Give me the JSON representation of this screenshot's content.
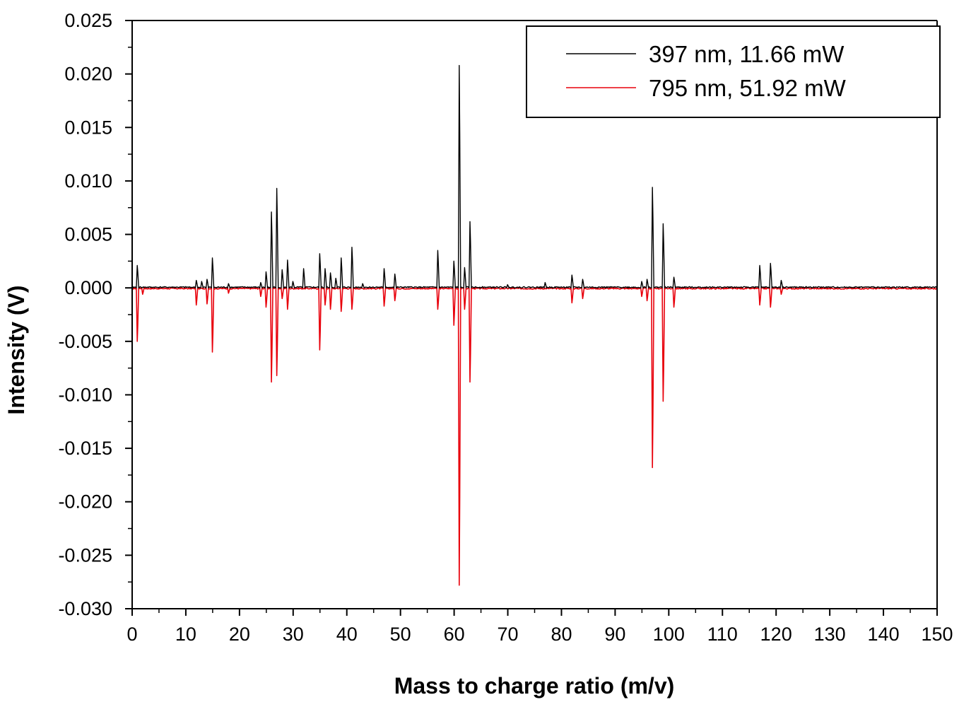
{
  "chart_data": {
    "type": "line",
    "title": "",
    "xlabel": "Mass to charge ratio (m/v)",
    "ylabel": "Intensity (V)",
    "xlim": [
      0,
      150
    ],
    "ylim": [
      -0.03,
      0.025
    ],
    "x_ticks": [
      0,
      10,
      20,
      30,
      40,
      50,
      60,
      70,
      80,
      90,
      100,
      110,
      120,
      130,
      140,
      150
    ],
    "x_tick_labels": [
      "0",
      "10",
      "20",
      "30",
      "40",
      "50",
      "60",
      "70",
      "80",
      "90",
      "100",
      "110",
      "120",
      "130",
      "140",
      "150"
    ],
    "y_ticks": [
      0.025,
      0.02,
      0.015,
      0.01,
      0.005,
      0.0,
      -0.005,
      -0.01,
      -0.015,
      -0.02,
      -0.025,
      -0.03
    ],
    "y_tick_labels": [
      "0.025",
      "0.020",
      "0.015",
      "0.010",
      "0.005",
      "0.000",
      "-0.005",
      "-0.010",
      "-0.015",
      "-0.020",
      "-0.025",
      "-0.030"
    ],
    "grid": false,
    "legend_position": "top-right",
    "series": [
      {
        "name": "397 nm, 11.66 mW",
        "color": "#000000",
        "peaks": [
          {
            "x": 1,
            "y": 0.0021
          },
          {
            "x": 12,
            "y": 0.0007
          },
          {
            "x": 13,
            "y": 0.0006
          },
          {
            "x": 14,
            "y": 0.0008
          },
          {
            "x": 15,
            "y": 0.0028
          },
          {
            "x": 18,
            "y": 0.0004
          },
          {
            "x": 24,
            "y": 0.0005
          },
          {
            "x": 25,
            "y": 0.0015
          },
          {
            "x": 26,
            "y": 0.0071
          },
          {
            "x": 27,
            "y": 0.0093
          },
          {
            "x": 28,
            "y": 0.0017
          },
          {
            "x": 29,
            "y": 0.0026
          },
          {
            "x": 30,
            "y": 0.0006
          },
          {
            "x": 32,
            "y": 0.0018
          },
          {
            "x": 35,
            "y": 0.0032
          },
          {
            "x": 36,
            "y": 0.0018
          },
          {
            "x": 37,
            "y": 0.0014
          },
          {
            "x": 38,
            "y": 0.0009
          },
          {
            "x": 39,
            "y": 0.0028
          },
          {
            "x": 41,
            "y": 0.0038
          },
          {
            "x": 43,
            "y": 0.0004
          },
          {
            "x": 47,
            "y": 0.0018
          },
          {
            "x": 49,
            "y": 0.0013
          },
          {
            "x": 57,
            "y": 0.0035
          },
          {
            "x": 60,
            "y": 0.0025
          },
          {
            "x": 61,
            "y": 0.0208
          },
          {
            "x": 62,
            "y": 0.0019
          },
          {
            "x": 63,
            "y": 0.0062
          },
          {
            "x": 70,
            "y": 0.0003
          },
          {
            "x": 77,
            "y": 0.0005
          },
          {
            "x": 82,
            "y": 0.0012
          },
          {
            "x": 84,
            "y": 0.0008
          },
          {
            "x": 95,
            "y": 0.0006
          },
          {
            "x": 96,
            "y": 0.0008
          },
          {
            "x": 97,
            "y": 0.0094
          },
          {
            "x": 99,
            "y": 0.006
          },
          {
            "x": 101,
            "y": 0.001
          },
          {
            "x": 117,
            "y": 0.0021
          },
          {
            "x": 119,
            "y": 0.0023
          },
          {
            "x": 121,
            "y": 0.0007
          }
        ]
      },
      {
        "name": "795 nm, 51.92 mW",
        "color": "#e8000b",
        "peaks": [
          {
            "x": 1,
            "y": -0.005
          },
          {
            "x": 2,
            "y": -0.0006
          },
          {
            "x": 12,
            "y": -0.0016
          },
          {
            "x": 14,
            "y": -0.0015
          },
          {
            "x": 15,
            "y": -0.006
          },
          {
            "x": 18,
            "y": -0.0005
          },
          {
            "x": 24,
            "y": -0.0008
          },
          {
            "x": 25,
            "y": -0.0018
          },
          {
            "x": 26,
            "y": -0.0088
          },
          {
            "x": 27,
            "y": -0.0082
          },
          {
            "x": 28,
            "y": -0.001
          },
          {
            "x": 29,
            "y": -0.002
          },
          {
            "x": 35,
            "y": -0.0058
          },
          {
            "x": 36,
            "y": -0.0016
          },
          {
            "x": 37,
            "y": -0.002
          },
          {
            "x": 39,
            "y": -0.0022
          },
          {
            "x": 41,
            "y": -0.002
          },
          {
            "x": 47,
            "y": -0.0017
          },
          {
            "x": 49,
            "y": -0.0012
          },
          {
            "x": 57,
            "y": -0.002
          },
          {
            "x": 60,
            "y": -0.0035
          },
          {
            "x": 61,
            "y": -0.0278
          },
          {
            "x": 62,
            "y": -0.002
          },
          {
            "x": 63,
            "y": -0.0088
          },
          {
            "x": 82,
            "y": -0.0014
          },
          {
            "x": 84,
            "y": -0.001
          },
          {
            "x": 95,
            "y": -0.0008
          },
          {
            "x": 96,
            "y": -0.0012
          },
          {
            "x": 97,
            "y": -0.0168
          },
          {
            "x": 99,
            "y": -0.0106
          },
          {
            "x": 101,
            "y": -0.0018
          },
          {
            "x": 117,
            "y": -0.0016
          },
          {
            "x": 119,
            "y": -0.0018
          },
          {
            "x": 121,
            "y": -0.0006
          }
        ]
      }
    ]
  }
}
